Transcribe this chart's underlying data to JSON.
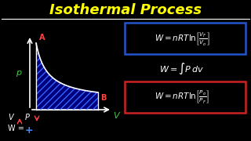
{
  "background_color": "#000000",
  "title": "Isothermal Process",
  "title_color": "#ffff00",
  "title_fontsize": 13,
  "separator_color": "#ffffff",
  "p_label": "p",
  "p_label_color": "#44cc44",
  "v_label": "V",
  "v_label_color": "#44cc44",
  "point_a_label": "A",
  "point_a_color": "#ff4444",
  "point_b_label": "B",
  "point_b_color": "#ff4444",
  "curve_color": "#ffffff",
  "fill_color": "#00008b",
  "fill_alpha": 0.9,
  "hatch_color": "#3366ff",
  "axis_color": "#ffffff",
  "box1_color": "#2255cc",
  "box2_color": "#cc2222",
  "text_color": "#ffffff",
  "plus_color": "#4488ff",
  "arrow_color_red": "#ff4444",
  "arrow_color_white": "#ffffff"
}
